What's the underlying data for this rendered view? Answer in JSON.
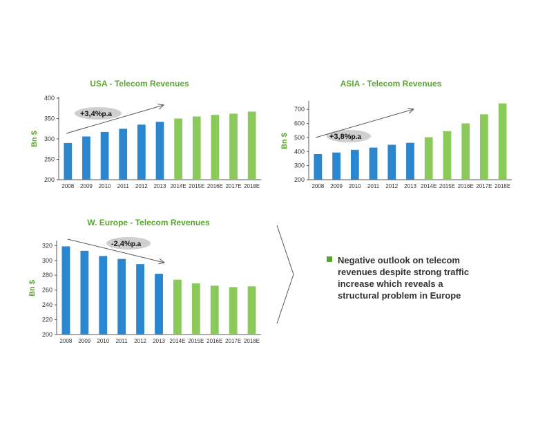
{
  "colors": {
    "historic": "#2a86cf",
    "forecast": "#8bc95a",
    "title": "#5aa532",
    "bubble": "#cfcfcf"
  },
  "chart_data": [
    {
      "type": "bar",
      "title": "USA - Telecom Revenues",
      "ylabel": "Bn $",
      "categories": [
        "2008",
        "2009",
        "2010",
        "2011",
        "2012",
        "2013",
        "2014E",
        "2015E",
        "2016E",
        "2017E",
        "2018E"
      ],
      "values": [
        290,
        306,
        317,
        325,
        335,
        342,
        350,
        355,
        359,
        362,
        367
      ],
      "forecast_from_index": 6,
      "ylim": [
        200,
        400
      ],
      "yticks": [
        200,
        250,
        300,
        350,
        400
      ],
      "trend_label": "+3,4%",
      "trend_suffix": "p.a",
      "grid": false
    },
    {
      "type": "bar",
      "title": "ASIA - Telecom Revenues",
      "ylabel": "Bn $",
      "categories": [
        "2008",
        "2009",
        "2010",
        "2011",
        "2012",
        "2013",
        "2014E",
        "2015E",
        "2016E",
        "2017E",
        "2018E"
      ],
      "values": [
        382,
        393,
        412,
        428,
        448,
        462,
        502,
        545,
        600,
        665,
        742
      ],
      "forecast_from_index": 6,
      "ylim": [
        200,
        750
      ],
      "yticks": [
        200,
        300,
        400,
        500,
        600,
        700
      ],
      "trend_label": "+3,8%",
      "trend_suffix": "p.a",
      "grid": false
    },
    {
      "type": "bar",
      "title": "W. Europe - Telecom Revenues",
      "ylabel": "Bn $",
      "categories": [
        "2008",
        "2009",
        "2010",
        "2011",
        "2012",
        "2013",
        "2014E",
        "2015E",
        "2016E",
        "2017E",
        "2018E"
      ],
      "values": [
        319,
        313,
        306,
        302,
        295,
        282,
        274,
        269,
        266,
        264,
        265
      ],
      "forecast_from_index": 6,
      "ylim": [
        200,
        325
      ],
      "yticks": [
        200,
        220,
        240,
        260,
        280,
        300,
        320
      ],
      "trend_label": "-2,4%",
      "trend_suffix": "p.a",
      "grid": false
    }
  ],
  "takeaway": {
    "text": "Negative outlook on telecom revenues despite strong traffic increase which reveals a structural problem in Europe"
  }
}
